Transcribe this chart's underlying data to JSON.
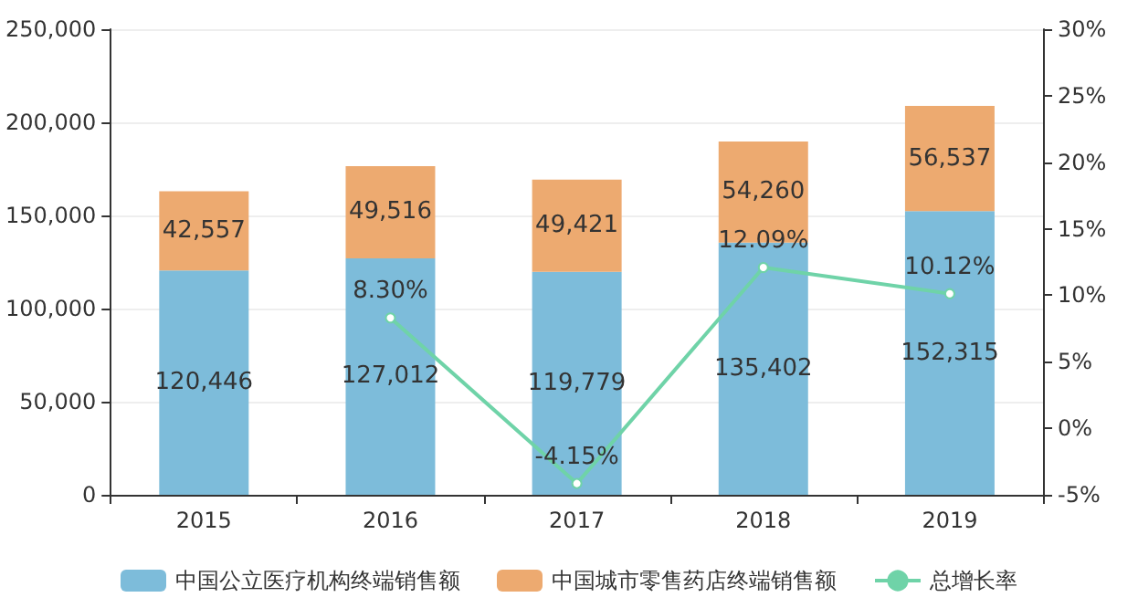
{
  "chart_data": {
    "type": "bar",
    "stacked": true,
    "categories": [
      "2015",
      "2016",
      "2017",
      "2018",
      "2019"
    ],
    "series": [
      {
        "name": "中国公立医疗机构终端销售额",
        "color": "#7dbcda",
        "values": [
          120446,
          127012,
          119779,
          135402,
          152315
        ],
        "value_labels": [
          "120,446",
          "127,012",
          "119,779",
          "135,402",
          "152,315"
        ]
      },
      {
        "name": "中国城市零售药店终端销售额",
        "color": "#edaa70",
        "values": [
          42557,
          49516,
          49421,
          54260,
          56537
        ],
        "value_labels": [
          "42,557",
          "49,516",
          "49,421",
          "54,260",
          "56,537"
        ]
      },
      {
        "name": "总增长率",
        "type": "line",
        "axis": "y2",
        "color": "#6fd3a8",
        "marker": "circle",
        "values": [
          null,
          8.3,
          -4.15,
          12.09,
          10.12
        ],
        "value_labels": [
          null,
          "8.30%",
          "-4.15%",
          "12.09%",
          "10.12%"
        ]
      }
    ],
    "ylim": [
      0,
      250000
    ],
    "yticks": [
      {
        "value": 0,
        "label": "0"
      },
      {
        "value": 50000,
        "label": "50,000"
      },
      {
        "value": 100000,
        "label": "100,000"
      },
      {
        "value": 150000,
        "label": "150,000"
      },
      {
        "value": 200000,
        "label": "200,000"
      },
      {
        "value": 250000,
        "label": "250,000"
      }
    ],
    "y2lim": [
      -5,
      30
    ],
    "y2ticks": [
      {
        "value": -5,
        "label": "-5%"
      },
      {
        "value": 0,
        "label": "0%"
      },
      {
        "value": 5,
        "label": "5%"
      },
      {
        "value": 10,
        "label": "10%"
      },
      {
        "value": 15,
        "label": "15%"
      },
      {
        "value": 20,
        "label": "20%"
      },
      {
        "value": 25,
        "label": "25%"
      },
      {
        "value": 30,
        "label": "30%"
      }
    ],
    "grid": "y",
    "legend": "bottom"
  }
}
